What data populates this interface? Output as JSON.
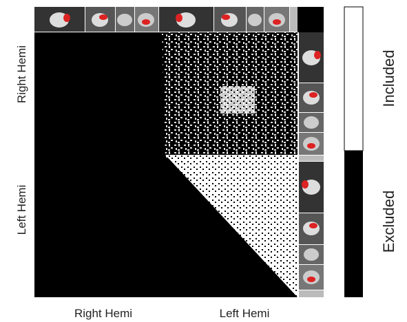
{
  "matrix": {
    "row_labels": [
      "Right Hemi",
      "Left Hemi"
    ],
    "col_labels": [
      "Right Hemi",
      "Left Hemi"
    ]
  },
  "colorbar": {
    "labels": [
      "Included",
      "Excluded"
    ]
  }
}
